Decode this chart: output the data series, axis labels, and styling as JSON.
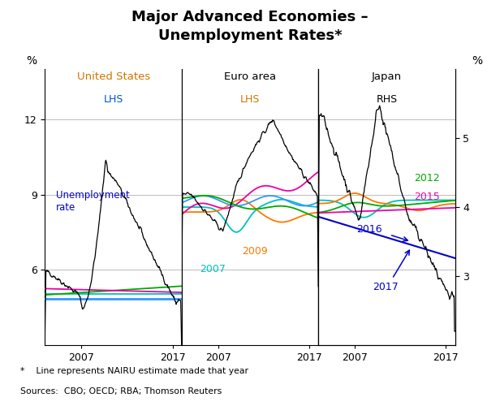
{
  "title": "Major Advanced Economies –\nUnemployment Rates*",
  "title_fontsize": 13,
  "footnote1": "*    Line represents NAIRU estimate made that year",
  "footnote2": "Sources:  CBO; OECD; RBA; Thomson Reuters",
  "panel1_title": "United States",
  "panel2_title": "Euro area",
  "panel3_title": "Japan",
  "lhs_ylim": [
    3,
    14
  ],
  "lhs_yticks": [
    6,
    9,
    12
  ],
  "rhs_ylim": [
    2,
    6
  ],
  "rhs_yticks": [
    3,
    4,
    5
  ],
  "background_color": "#ffffff",
  "grid_color": "#bbbbbb",
  "color_black": "#000000",
  "color_teal": "#00c0c0",
  "color_orange": "#ff7700",
  "color_green": "#00aa00",
  "color_pink": "#ee00aa",
  "color_blue": "#3399ff",
  "color_darkblue": "#0000cc",
  "color_us_title": "#cc7700",
  "color_lhs_label": "#0055cc",
  "annotation_fontsize": 9,
  "label_fontsize": 10,
  "tick_fontsize": 9
}
